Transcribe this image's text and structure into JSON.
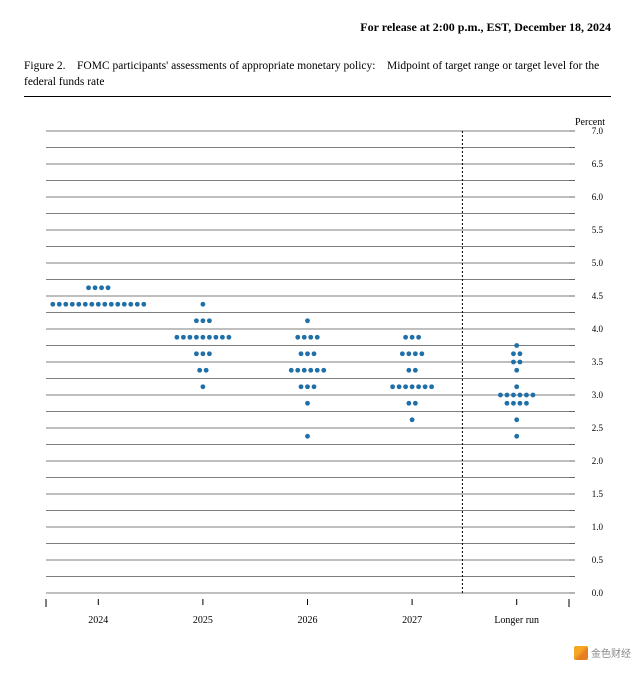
{
  "release_line": "For release at 2:00 p.m., EST, December 18, 2024",
  "figure_title": "Figure 2. FOMC participants' assessments of appropriate monetary policy: Midpoint of target range or target level for the federal funds rate",
  "y_axis_label": "Percent",
  "y_axis": {
    "min": 0.0,
    "max": 7.0,
    "major_step": 0.5,
    "minor_step": 0.25,
    "labels": [
      "0.0",
      "0.5",
      "1.0",
      "1.5",
      "2.0",
      "2.5",
      "3.0",
      "3.5",
      "4.0",
      "4.5",
      "5.0",
      "5.5",
      "6.0",
      "6.5",
      "7.0"
    ]
  },
  "x_categories": [
    "2024",
    "2025",
    "2026",
    "2027",
    "Longer run"
  ],
  "longer_run_separator": true,
  "dot_color": "#1f6fa8",
  "grid_color": "#000000",
  "axis_color": "#000000",
  "background_color": "#ffffff",
  "dot_radius": 2.4,
  "dot_row_gap": 6.5,
  "tick_font_size": 9,
  "axis_label_font_size": 10,
  "data": {
    "2024": [
      {
        "rate": 4.375,
        "count": 15
      },
      {
        "rate": 4.625,
        "count": 4
      }
    ],
    "2025": [
      {
        "rate": 3.125,
        "count": 1
      },
      {
        "rate": 3.375,
        "count": 2
      },
      {
        "rate": 3.625,
        "count": 3
      },
      {
        "rate": 3.875,
        "count": 9
      },
      {
        "rate": 4.125,
        "count": 3
      },
      {
        "rate": 4.375,
        "count": 1
      }
    ],
    "2026": [
      {
        "rate": 2.375,
        "count": 1
      },
      {
        "rate": 2.875,
        "count": 1
      },
      {
        "rate": 3.125,
        "count": 3
      },
      {
        "rate": 3.375,
        "count": 6
      },
      {
        "rate": 3.625,
        "count": 3
      },
      {
        "rate": 3.875,
        "count": 4
      },
      {
        "rate": 4.125,
        "count": 1
      }
    ],
    "2027": [
      {
        "rate": 2.625,
        "count": 1
      },
      {
        "rate": 2.875,
        "count": 2
      },
      {
        "rate": 3.125,
        "count": 7
      },
      {
        "rate": 3.375,
        "count": 2
      },
      {
        "rate": 3.625,
        "count": 4
      },
      {
        "rate": 3.875,
        "count": 3
      }
    ],
    "Longer run": [
      {
        "rate": 2.375,
        "count": 1
      },
      {
        "rate": 2.625,
        "count": 1
      },
      {
        "rate": 2.875,
        "count": 4
      },
      {
        "rate": 3.0,
        "count": 6
      },
      {
        "rate": 3.125,
        "count": 1
      },
      {
        "rate": 3.375,
        "count": 1
      },
      {
        "rate": 3.5,
        "count": 2
      },
      {
        "rate": 3.625,
        "count": 2
      },
      {
        "rate": 3.75,
        "count": 1
      }
    ]
  },
  "watermark": "金色财经"
}
